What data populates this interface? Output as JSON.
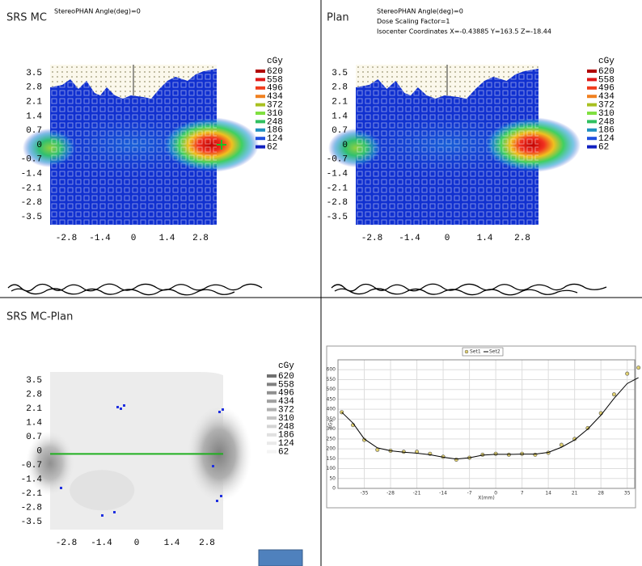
{
  "panels": [
    {
      "title": "SRS MC",
      "header": [
        "StereoPHAN Angle(deg)=0"
      ],
      "unit": "cGy",
      "yticks": [
        3.5,
        2.8,
        2.1,
        1.4,
        0.7,
        0,
        -0.7,
        -1.4,
        -2.1,
        -2.8,
        -3.5
      ],
      "xticks": [
        -2.8,
        -1.4,
        0,
        1.4,
        2.8
      ],
      "legend": [
        {
          "level": 620,
          "color": "#b00000"
        },
        {
          "level": 558,
          "color": "#e01818"
        },
        {
          "level": 496,
          "color": "#f03c1c"
        },
        {
          "level": 434,
          "color": "#f08020"
        },
        {
          "level": 372,
          "color": "#a8c020"
        },
        {
          "level": 310,
          "color": "#80e040"
        },
        {
          "level": 248,
          "color": "#30c060"
        },
        {
          "level": 186,
          "color": "#2090c0"
        },
        {
          "level": 124,
          "color": "#2050e0"
        },
        {
          "level": 62,
          "color": "#1020c0"
        }
      ]
    },
    {
      "title": "Plan",
      "header": [
        "StereoPHAN Angle(deg)=0",
        "Dose Scaling Factor=1",
        "Isocenter Coordinates X=-0.43885 Y=163.5 Z=-18.44"
      ],
      "unit": "cGy",
      "yticks": [
        3.5,
        2.8,
        2.1,
        1.4,
        0.7,
        0,
        -0.7,
        -1.4,
        -2.1,
        -2.8,
        -3.5
      ],
      "xticks": [
        -2.8,
        -1.4,
        0,
        1.4,
        2.8
      ],
      "legend": [
        {
          "level": 620,
          "color": "#b00000"
        },
        {
          "level": 558,
          "color": "#e01818"
        },
        {
          "level": 496,
          "color": "#f03c1c"
        },
        {
          "level": 434,
          "color": "#f08020"
        },
        {
          "level": 372,
          "color": "#a8c020"
        },
        {
          "level": 310,
          "color": "#80e040"
        },
        {
          "level": 248,
          "color": "#30c060"
        },
        {
          "level": 186,
          "color": "#2090c0"
        },
        {
          "level": 124,
          "color": "#2050e0"
        },
        {
          "level": 62,
          "color": "#1020c0"
        }
      ]
    },
    {
      "title": "SRS MC-Plan",
      "unit": "cGy",
      "yticks": [
        3.5,
        2.8,
        2.1,
        1.4,
        0.7,
        0,
        -0.7,
        -1.4,
        -2.1,
        -2.8,
        -3.5
      ],
      "xticks": [
        -2.8,
        -1.4,
        0,
        1.4,
        2.8
      ],
      "legend": [
        {
          "level": 620,
          "color": "#707070"
        },
        {
          "level": 558,
          "color": "#808080"
        },
        {
          "level": 496,
          "color": "#909090"
        },
        {
          "level": 434,
          "color": "#a0a0a0"
        },
        {
          "level": 372,
          "color": "#b0b0b0"
        },
        {
          "level": 310,
          "color": "#c4c4c4"
        },
        {
          "level": 248,
          "color": "#d4d4d4"
        },
        {
          "level": 186,
          "color": "#e0e0e0"
        },
        {
          "level": 124,
          "color": "#eaeaea"
        },
        {
          "level": 62,
          "color": "#f4f4f4"
        }
      ]
    }
  ],
  "profile": {
    "type": "line",
    "x_label": "X(mm)",
    "y_label": "cGy",
    "xlim": [
      -42,
      37
    ],
    "ylim": [
      0,
      650
    ],
    "xticks": [
      -35,
      -28,
      -21,
      -14,
      -7,
      0,
      7,
      14,
      21,
      28,
      35
    ],
    "yticks": [
      0,
      50,
      100,
      150,
      200,
      250,
      300,
      350,
      400,
      450,
      500,
      550,
      600
    ],
    "series": [
      {
        "name": "Set1",
        "color": "#e0d070",
        "x": [
          -41,
          -38,
          -35,
          -31.5,
          -28,
          -24.5,
          -21,
          -17.5,
          -14,
          -10.5,
          -7,
          -3.5,
          0,
          3.5,
          7,
          10.5,
          14,
          17.5,
          21,
          24.5,
          28,
          31.5,
          35,
          38
        ],
        "values": [
          385,
          320,
          245,
          195,
          190,
          185,
          185,
          175,
          160,
          145,
          155,
          170,
          175,
          170,
          175,
          170,
          180,
          220,
          250,
          305,
          380,
          475,
          580,
          610
        ]
      },
      {
        "name": "Set2",
        "color": "#000000",
        "x": [
          -41,
          -38,
          -35,
          -31.5,
          -28,
          -24.5,
          -21,
          -17.5,
          -14,
          -10.5,
          -7,
          -3.5,
          0,
          3.5,
          7,
          10.5,
          14,
          17.5,
          21,
          24.5,
          28,
          31.5,
          35,
          38
        ],
        "values": [
          385,
          330,
          250,
          205,
          190,
          183,
          178,
          170,
          158,
          148,
          155,
          168,
          172,
          172,
          173,
          173,
          182,
          208,
          245,
          300,
          370,
          455,
          530,
          560
        ]
      }
    ]
  }
}
